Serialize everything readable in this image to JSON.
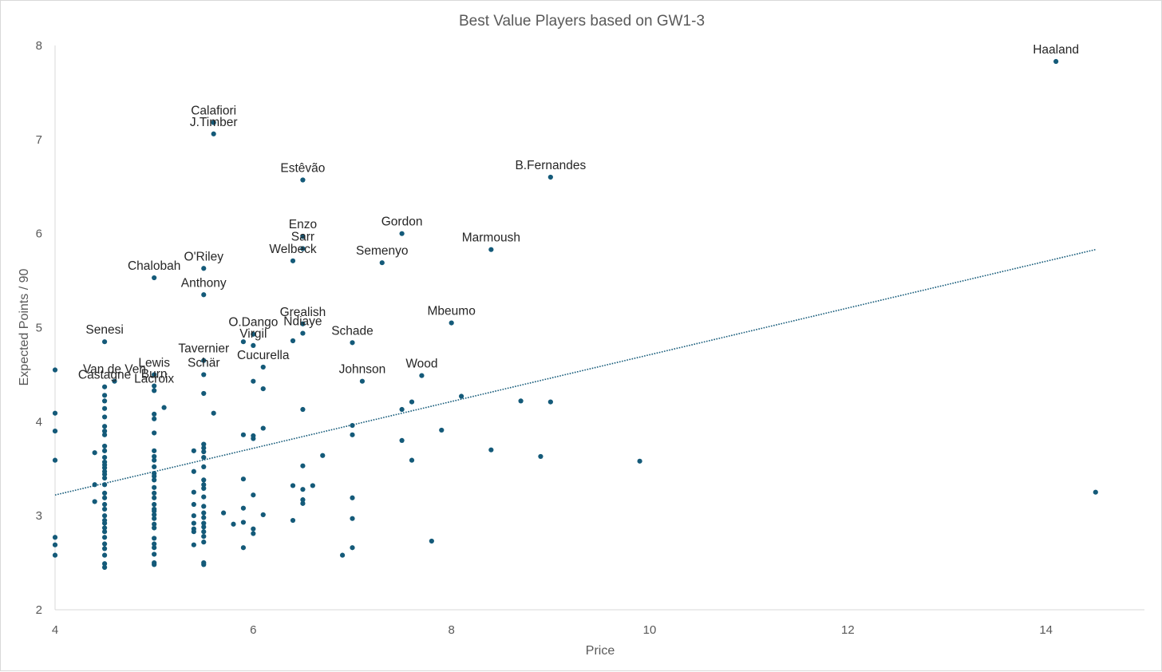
{
  "chart_data": {
    "type": "scatter",
    "title": "Best Value Players based on GW1-3",
    "xlabel": "Price",
    "ylabel": "Expected Points / 90",
    "xlim": [
      4,
      15
    ],
    "ylim": [
      2,
      8
    ],
    "x_ticks": [
      4,
      6,
      8,
      10,
      12,
      14
    ],
    "y_ticks": [
      2,
      3,
      4,
      5,
      6,
      7,
      8
    ],
    "grid": false,
    "legend": "none",
    "marker_color": "#145A79",
    "trendline": {
      "type": "linear",
      "x": [
        4,
        14.5
      ],
      "y": [
        3.22,
        5.83
      ],
      "color": "#145A79",
      "style": "dotted"
    },
    "labeled_points": [
      {
        "name": "Haaland",
        "x": 14.1,
        "y": 7.83
      },
      {
        "name": "Calafiori",
        "x": 5.6,
        "y": 7.18
      },
      {
        "name": "J.Timber",
        "x": 5.6,
        "y": 7.06
      },
      {
        "name": "Estêvão",
        "x": 6.5,
        "y": 6.57
      },
      {
        "name": "B.Fernandes",
        "x": 9.0,
        "y": 6.6
      },
      {
        "name": "Gordon",
        "x": 7.5,
        "y": 6.0
      },
      {
        "name": "Enzo",
        "x": 6.5,
        "y": 5.97
      },
      {
        "name": "Sarr",
        "x": 6.5,
        "y": 5.84
      },
      {
        "name": "Welbeck",
        "x": 6.4,
        "y": 5.71
      },
      {
        "name": "Semenyo",
        "x": 7.3,
        "y": 5.69
      },
      {
        "name": "Marmoush",
        "x": 8.4,
        "y": 5.83
      },
      {
        "name": "Chalobah",
        "x": 5.0,
        "y": 5.53
      },
      {
        "name": "O'Riley",
        "x": 5.5,
        "y": 5.63
      },
      {
        "name": "Anthony",
        "x": 5.5,
        "y": 5.35
      },
      {
        "name": "Grealish",
        "x": 6.5,
        "y": 5.04
      },
      {
        "name": "Ndiaye",
        "x": 6.5,
        "y": 4.94
      },
      {
        "name": "Mbeumo",
        "x": 8.0,
        "y": 5.05
      },
      {
        "name": "O.Dango",
        "x": 6.0,
        "y": 4.93
      },
      {
        "name": "Virgil",
        "x": 6.0,
        "y": 4.81
      },
      {
        "name": "Schade",
        "x": 7.0,
        "y": 4.84
      },
      {
        "name": "Senesi",
        "x": 4.5,
        "y": 4.85
      },
      {
        "name": "Cucurella",
        "x": 6.1,
        "y": 4.58
      },
      {
        "name": "Tavernier",
        "x": 5.5,
        "y": 4.65
      },
      {
        "name": "Schär",
        "x": 5.5,
        "y": 4.5
      },
      {
        "name": "Van de Ven",
        "x": 4.6,
        "y": 4.43
      },
      {
        "name": "Castagne",
        "x": 4.5,
        "y": 4.37
      },
      {
        "name": "Lewis",
        "x": 5.0,
        "y": 4.5
      },
      {
        "name": "Burn",
        "x": 5.0,
        "y": 4.38
      },
      {
        "name": "Lacroix",
        "x": 5.0,
        "y": 4.33
      },
      {
        "name": "Johnson",
        "x": 7.1,
        "y": 4.43
      },
      {
        "name": "Wood",
        "x": 7.7,
        "y": 4.49
      }
    ],
    "points": [
      [
        4.0,
        4.55
      ],
      [
        4.0,
        4.09
      ],
      [
        4.0,
        3.9
      ],
      [
        4.0,
        3.59
      ],
      [
        4.0,
        2.77
      ],
      [
        4.0,
        2.69
      ],
      [
        4.0,
        2.58
      ],
      [
        4.4,
        3.67
      ],
      [
        4.4,
        3.33
      ],
      [
        4.4,
        3.15
      ],
      [
        4.5,
        4.85
      ],
      [
        4.5,
        4.37
      ],
      [
        4.5,
        4.28
      ],
      [
        4.5,
        4.22
      ],
      [
        4.5,
        4.14
      ],
      [
        4.5,
        4.05
      ],
      [
        4.5,
        3.95
      ],
      [
        4.5,
        3.9
      ],
      [
        4.5,
        3.86
      ],
      [
        4.5,
        3.74
      ],
      [
        4.5,
        3.69
      ],
      [
        4.5,
        3.62
      ],
      [
        4.5,
        3.57
      ],
      [
        4.5,
        3.54
      ],
      [
        4.5,
        3.51
      ],
      [
        4.5,
        3.47
      ],
      [
        4.5,
        3.44
      ],
      [
        4.5,
        3.4
      ],
      [
        4.5,
        3.33
      ],
      [
        4.5,
        3.24
      ],
      [
        4.5,
        3.19
      ],
      [
        4.5,
        3.12
      ],
      [
        4.5,
        3.07
      ],
      [
        4.5,
        3.0
      ],
      [
        4.5,
        2.95
      ],
      [
        4.5,
        2.92
      ],
      [
        4.5,
        2.87
      ],
      [
        4.5,
        2.83
      ],
      [
        4.5,
        2.77
      ],
      [
        4.5,
        2.7
      ],
      [
        4.5,
        2.65
      ],
      [
        4.5,
        2.58
      ],
      [
        4.5,
        2.49
      ],
      [
        4.5,
        2.45
      ],
      [
        4.6,
        4.43
      ],
      [
        5.0,
        5.53
      ],
      [
        5.0,
        4.5
      ],
      [
        5.0,
        4.38
      ],
      [
        5.0,
        4.33
      ],
      [
        5.0,
        4.08
      ],
      [
        5.0,
        4.03
      ],
      [
        5.0,
        3.88
      ],
      [
        5.0,
        3.69
      ],
      [
        5.0,
        3.63
      ],
      [
        5.0,
        3.59
      ],
      [
        5.0,
        3.52
      ],
      [
        5.0,
        3.45
      ],
      [
        5.0,
        3.42
      ],
      [
        5.0,
        3.38
      ],
      [
        5.0,
        3.3
      ],
      [
        5.0,
        3.24
      ],
      [
        5.0,
        3.19
      ],
      [
        5.0,
        3.12
      ],
      [
        5.0,
        3.07
      ],
      [
        5.0,
        3.05
      ],
      [
        5.0,
        3.01
      ],
      [
        5.0,
        2.97
      ],
      [
        5.0,
        2.91
      ],
      [
        5.0,
        2.87
      ],
      [
        5.0,
        2.76
      ],
      [
        5.0,
        2.7
      ],
      [
        5.0,
        2.66
      ],
      [
        5.0,
        2.59
      ],
      [
        5.0,
        2.5
      ],
      [
        5.0,
        2.48
      ],
      [
        5.1,
        4.15
      ],
      [
        5.4,
        3.69
      ],
      [
        5.4,
        3.47
      ],
      [
        5.4,
        3.25
      ],
      [
        5.4,
        3.12
      ],
      [
        5.4,
        3.0
      ],
      [
        5.4,
        2.92
      ],
      [
        5.4,
        2.86
      ],
      [
        5.4,
        2.83
      ],
      [
        5.4,
        2.69
      ],
      [
        5.5,
        5.63
      ],
      [
        5.5,
        5.35
      ],
      [
        5.5,
        4.65
      ],
      [
        5.5,
        4.5
      ],
      [
        5.5,
        4.3
      ],
      [
        5.5,
        3.76
      ],
      [
        5.5,
        3.72
      ],
      [
        5.5,
        3.68
      ],
      [
        5.5,
        3.62
      ],
      [
        5.5,
        3.52
      ],
      [
        5.5,
        3.38
      ],
      [
        5.5,
        3.33
      ],
      [
        5.5,
        3.29
      ],
      [
        5.5,
        3.2
      ],
      [
        5.5,
        3.1
      ],
      [
        5.5,
        3.03
      ],
      [
        5.5,
        2.98
      ],
      [
        5.5,
        2.92
      ],
      [
        5.5,
        2.88
      ],
      [
        5.5,
        2.83
      ],
      [
        5.5,
        2.78
      ],
      [
        5.5,
        2.72
      ],
      [
        5.5,
        2.5
      ],
      [
        5.5,
        2.48
      ],
      [
        5.6,
        7.18
      ],
      [
        5.6,
        7.06
      ],
      [
        5.6,
        4.09
      ],
      [
        5.7,
        3.03
      ],
      [
        5.8,
        2.91
      ],
      [
        5.9,
        4.85
      ],
      [
        5.9,
        3.86
      ],
      [
        5.9,
        3.39
      ],
      [
        5.9,
        3.08
      ],
      [
        5.9,
        2.93
      ],
      [
        5.9,
        2.66
      ],
      [
        6.0,
        4.93
      ],
      [
        6.0,
        4.81
      ],
      [
        6.0,
        4.43
      ],
      [
        6.0,
        3.85
      ],
      [
        6.0,
        3.82
      ],
      [
        6.0,
        3.22
      ],
      [
        6.0,
        2.86
      ],
      [
        6.0,
        2.81
      ],
      [
        6.1,
        4.58
      ],
      [
        6.1,
        4.35
      ],
      [
        6.1,
        3.93
      ],
      [
        6.1,
        3.01
      ],
      [
        6.4,
        5.71
      ],
      [
        6.4,
        4.86
      ],
      [
        6.4,
        3.32
      ],
      [
        6.4,
        2.95
      ],
      [
        6.5,
        6.57
      ],
      [
        6.5,
        5.97
      ],
      [
        6.5,
        5.84
      ],
      [
        6.5,
        5.04
      ],
      [
        6.5,
        4.94
      ],
      [
        6.5,
        4.13
      ],
      [
        6.5,
        3.53
      ],
      [
        6.5,
        3.28
      ],
      [
        6.5,
        3.17
      ],
      [
        6.5,
        3.13
      ],
      [
        6.6,
        3.32
      ],
      [
        6.7,
        3.64
      ],
      [
        6.9,
        2.58
      ],
      [
        7.0,
        4.84
      ],
      [
        7.0,
        3.96
      ],
      [
        7.0,
        3.86
      ],
      [
        7.0,
        3.19
      ],
      [
        7.0,
        2.97
      ],
      [
        7.0,
        2.66
      ],
      [
        7.1,
        4.43
      ],
      [
        7.3,
        5.69
      ],
      [
        7.5,
        6.0
      ],
      [
        7.5,
        4.13
      ],
      [
        7.5,
        3.8
      ],
      [
        7.6,
        4.21
      ],
      [
        7.6,
        3.59
      ],
      [
        7.7,
        4.49
      ],
      [
        7.8,
        2.73
      ],
      [
        7.9,
        3.91
      ],
      [
        8.0,
        5.05
      ],
      [
        8.1,
        4.27
      ],
      [
        8.4,
        5.83
      ],
      [
        8.4,
        3.7
      ],
      [
        8.7,
        4.22
      ],
      [
        8.9,
        3.63
      ],
      [
        9.0,
        6.6
      ],
      [
        9.0,
        4.21
      ],
      [
        9.9,
        3.58
      ],
      [
        14.1,
        7.83
      ],
      [
        14.5,
        3.25
      ]
    ]
  }
}
